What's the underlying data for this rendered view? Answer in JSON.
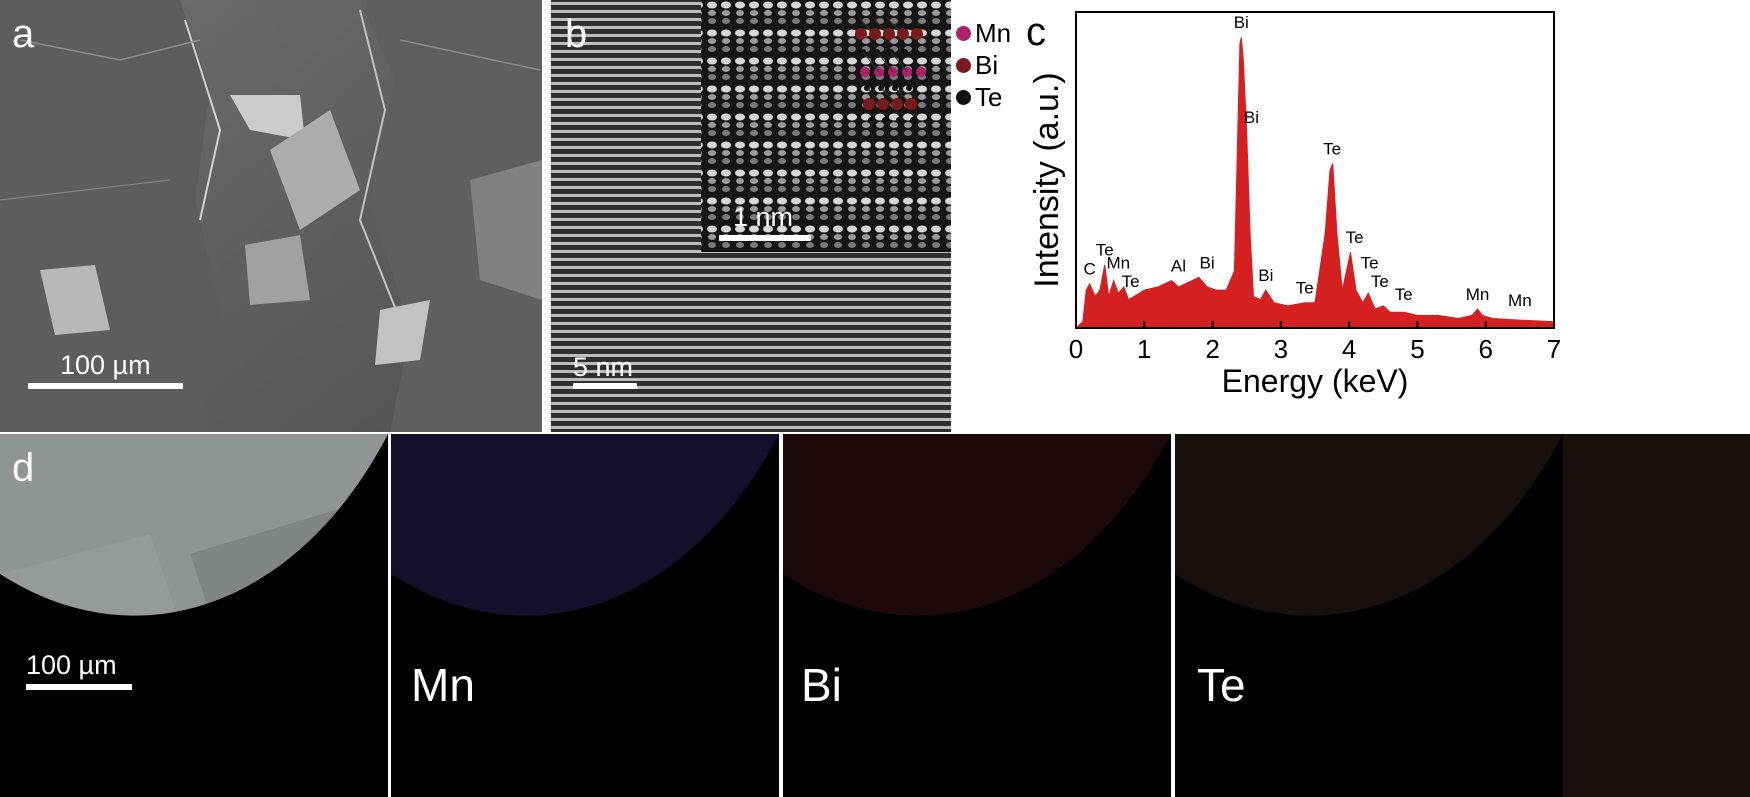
{
  "panel_a": {
    "label": "a",
    "scale_bar": "100 µm"
  },
  "panel_b": {
    "label": "b",
    "scale_bar": "5 nm",
    "inset_scale_bar": "1 nm",
    "legend": [
      {
        "name": "Mn",
        "color": "#b0206a"
      },
      {
        "name": "Bi",
        "color": "#7a1a1a"
      },
      {
        "name": "Te",
        "color": "#111111"
      }
    ]
  },
  "panel_c": {
    "label": "c"
  },
  "panel_d": {
    "label": "d",
    "scale_bar": "100 µm",
    "maps": [
      {
        "element": "Mn",
        "tint": "#140f2a"
      },
      {
        "element": "Bi",
        "tint": "#1c0a0a"
      },
      {
        "element": "Te",
        "tint": "#17100c"
      }
    ]
  },
  "chart_data": {
    "type": "line",
    "xlabel": "Energy (keV)",
    "ylabel": "Intensity (a.u.)",
    "xlim": [
      0,
      7
    ],
    "ylim": [
      0,
      1
    ],
    "x_ticks": [
      0,
      1,
      2,
      3,
      4,
      5,
      6,
      7
    ],
    "series_color": "#d42020",
    "x": [
      0.0,
      0.1,
      0.15,
      0.2,
      0.28,
      0.35,
      0.42,
      0.48,
      0.55,
      0.62,
      0.7,
      0.77,
      0.85,
      1.0,
      1.2,
      1.4,
      1.5,
      1.6,
      1.8,
      1.92,
      2.05,
      2.2,
      2.32,
      2.4,
      2.42,
      2.45,
      2.5,
      2.55,
      2.6,
      2.7,
      2.78,
      2.9,
      3.1,
      3.35,
      3.5,
      3.65,
      3.72,
      3.76,
      3.82,
      3.9,
      3.98,
      4.02,
      4.1,
      4.2,
      4.28,
      4.38,
      4.5,
      4.6,
      4.8,
      5.0,
      5.3,
      5.6,
      5.8,
      5.88,
      5.95,
      6.1,
      6.5,
      7.0
    ],
    "y": [
      0.0,
      0.02,
      0.12,
      0.14,
      0.1,
      0.12,
      0.2,
      0.1,
      0.15,
      0.11,
      0.13,
      0.09,
      0.1,
      0.12,
      0.13,
      0.15,
      0.13,
      0.14,
      0.16,
      0.13,
      0.12,
      0.12,
      0.18,
      0.9,
      0.92,
      0.85,
      0.62,
      0.3,
      0.1,
      0.09,
      0.12,
      0.08,
      0.07,
      0.08,
      0.08,
      0.3,
      0.5,
      0.52,
      0.3,
      0.12,
      0.2,
      0.24,
      0.12,
      0.08,
      0.11,
      0.06,
      0.07,
      0.05,
      0.05,
      0.04,
      0.04,
      0.03,
      0.04,
      0.06,
      0.04,
      0.03,
      0.025,
      0.02
    ],
    "peak_labels": [
      {
        "text": "C",
        "x": 0.2,
        "y": 0.15
      },
      {
        "text": "Te",
        "x": 0.42,
        "y": 0.21
      },
      {
        "text": "Mn",
        "x": 0.62,
        "y": 0.17
      },
      {
        "text": "Te",
        "x": 0.8,
        "y": 0.11
      },
      {
        "text": "Al",
        "x": 1.5,
        "y": 0.16
      },
      {
        "text": "Bi",
        "x": 1.92,
        "y": 0.17
      },
      {
        "text": "Bi",
        "x": 2.42,
        "y": 0.93
      },
      {
        "text": "Bi",
        "x": 2.57,
        "y": 0.63
      },
      {
        "text": "Bi",
        "x": 2.78,
        "y": 0.13
      },
      {
        "text": "Te",
        "x": 3.35,
        "y": 0.09
      },
      {
        "text": "Te",
        "x": 3.75,
        "y": 0.53
      },
      {
        "text": "Te",
        "x": 4.08,
        "y": 0.25
      },
      {
        "text": "Te",
        "x": 4.3,
        "y": 0.17
      },
      {
        "text": "Te",
        "x": 4.45,
        "y": 0.11
      },
      {
        "text": "Te",
        "x": 4.8,
        "y": 0.07
      },
      {
        "text": "Mn",
        "x": 5.88,
        "y": 0.07
      },
      {
        "text": "Mn",
        "x": 6.5,
        "y": 0.05
      }
    ]
  }
}
